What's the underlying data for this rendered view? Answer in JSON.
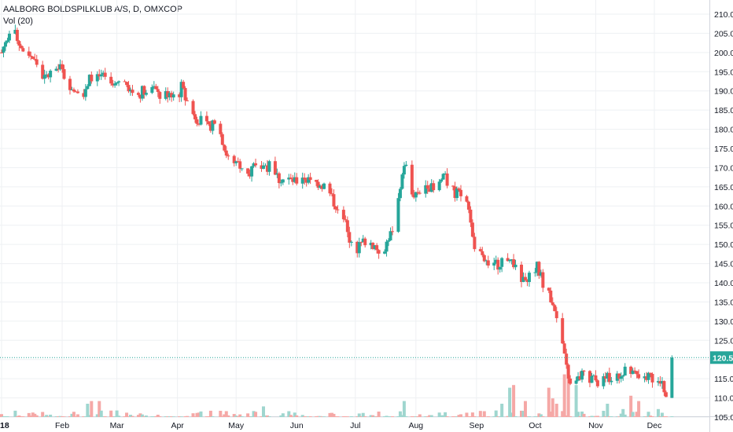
{
  "chart_data": {
    "type": "candlestick",
    "title": "AALBORG BOLDSPILKLUB A/S, D, OMXCOP",
    "indicator_label": "Vol (20)",
    "y_axis": {
      "ticks": [
        "210.0",
        "205.0",
        "200.0",
        "195.0",
        "190.0",
        "185.0",
        "180.0",
        "175.0",
        "170.0",
        "165.0",
        "160.0",
        "155.0",
        "150.0",
        "145.0",
        "140.0",
        "135.0",
        "130.0",
        "125.0",
        "120.0",
        "115.0",
        "110.0",
        "105.0"
      ],
      "ylim": [
        105,
        210
      ]
    },
    "x_axis": {
      "ticks": [
        {
          "label": "18",
          "day": 0
        },
        {
          "label": "Feb",
          "day": 31
        },
        {
          "label": "Mar",
          "day": 59
        },
        {
          "label": "Apr",
          "day": 90
        },
        {
          "label": "May",
          "day": 120
        },
        {
          "label": "Jun",
          "day": 151
        },
        {
          "label": "Jul",
          "day": 181
        },
        {
          "label": "Aug",
          "day": 212
        },
        {
          "label": "Sep",
          "day": 243
        },
        {
          "label": "Oct",
          "day": 273
        },
        {
          "label": "Nov",
          "day": 304
        },
        {
          "label": "Dec",
          "day": 334
        }
      ]
    },
    "last_price": "120.5",
    "last_price_value": 120.5,
    "colors": {
      "up": "#26a69a",
      "down": "#ef5350",
      "vol_up": "#9fd6cf",
      "vol_down": "#f5a8a6",
      "grid": "#eef0f3",
      "last_price": "#26a69a",
      "axis_text": "#131722"
    },
    "price_anchors": [
      [
        0,
        200
      ],
      [
        2,
        203
      ],
      [
        4,
        206
      ],
      [
        8,
        204
      ],
      [
        10,
        201
      ],
      [
        14,
        200
      ],
      [
        18,
        197
      ],
      [
        22,
        193
      ],
      [
        26,
        195
      ],
      [
        30,
        196
      ],
      [
        34,
        192
      ],
      [
        38,
        191
      ],
      [
        42,
        190
      ],
      [
        46,
        194
      ],
      [
        50,
        195
      ],
      [
        54,
        192
      ],
      [
        58,
        191
      ],
      [
        62,
        193
      ],
      [
        66,
        190
      ],
      [
        70,
        189
      ],
      [
        74,
        191
      ],
      [
        78,
        190
      ],
      [
        82,
        188
      ],
      [
        86,
        190
      ],
      [
        90,
        188
      ],
      [
        92,
        191
      ],
      [
        94,
        188
      ],
      [
        98,
        184
      ],
      [
        102,
        182
      ],
      [
        106,
        180
      ],
      [
        110,
        184
      ],
      [
        114,
        175
      ],
      [
        118,
        170
      ],
      [
        122,
        171
      ],
      [
        126,
        169
      ],
      [
        130,
        170
      ],
      [
        134,
        171
      ],
      [
        138,
        170
      ],
      [
        142,
        167
      ],
      [
        146,
        167
      ],
      [
        150,
        166
      ],
      [
        154,
        168
      ],
      [
        158,
        166
      ],
      [
        162,
        166
      ],
      [
        166,
        165
      ],
      [
        170,
        161
      ],
      [
        174,
        159
      ],
      [
        176,
        155
      ],
      [
        178,
        150
      ],
      [
        182,
        149
      ],
      [
        186,
        151
      ],
      [
        190,
        150
      ],
      [
        194,
        148
      ],
      [
        198,
        151
      ],
      [
        202,
        157
      ],
      [
        204,
        166
      ],
      [
        206,
        170
      ],
      [
        208,
        170
      ],
      [
        210,
        163
      ],
      [
        214,
        164
      ],
      [
        218,
        166
      ],
      [
        222,
        163
      ],
      [
        226,
        168
      ],
      [
        230,
        164
      ],
      [
        234,
        163
      ],
      [
        238,
        161
      ],
      [
        240,
        157
      ],
      [
        242,
        150
      ],
      [
        246,
        146
      ],
      [
        250,
        145
      ],
      [
        254,
        145
      ],
      [
        258,
        147
      ],
      [
        262,
        145
      ],
      [
        266,
        141
      ],
      [
        270,
        142
      ],
      [
        274,
        144
      ],
      [
        278,
        139
      ],
      [
        282,
        135
      ],
      [
        286,
        128
      ],
      [
        288,
        120
      ],
      [
        290,
        115
      ],
      [
        292,
        111
      ],
      [
        294,
        114
      ],
      [
        298,
        117
      ],
      [
        302,
        115
      ],
      [
        306,
        114
      ],
      [
        310,
        115
      ],
      [
        314,
        115
      ],
      [
        318,
        117
      ],
      [
        322,
        116
      ],
      [
        326,
        115
      ],
      [
        330,
        116
      ],
      [
        334,
        115
      ],
      [
        338,
        113
      ],
      [
        342,
        110
      ],
      [
        343,
        120.5
      ]
    ],
    "volume_spikes": [
      [
        44,
        5
      ],
      [
        46,
        6
      ],
      [
        48,
        8
      ],
      [
        50,
        6
      ],
      [
        54,
        8
      ],
      [
        132,
        5
      ],
      [
        134,
        4
      ],
      [
        202,
        4
      ],
      [
        206,
        6
      ],
      [
        208,
        10
      ],
      [
        222,
        4
      ],
      [
        256,
        5
      ],
      [
        260,
        11
      ],
      [
        262,
        12
      ],
      [
        264,
        8
      ],
      [
        268,
        6
      ],
      [
        278,
        10
      ],
      [
        280,
        11
      ],
      [
        282,
        7
      ],
      [
        284,
        5
      ],
      [
        286,
        9
      ],
      [
        288,
        16
      ],
      [
        290,
        18
      ],
      [
        292,
        22
      ],
      [
        294,
        12
      ],
      [
        310,
        5
      ],
      [
        314,
        6
      ],
      [
        318,
        3
      ],
      [
        322,
        8
      ],
      [
        326,
        6
      ],
      [
        334,
        4
      ],
      [
        336,
        3
      ]
    ]
  }
}
